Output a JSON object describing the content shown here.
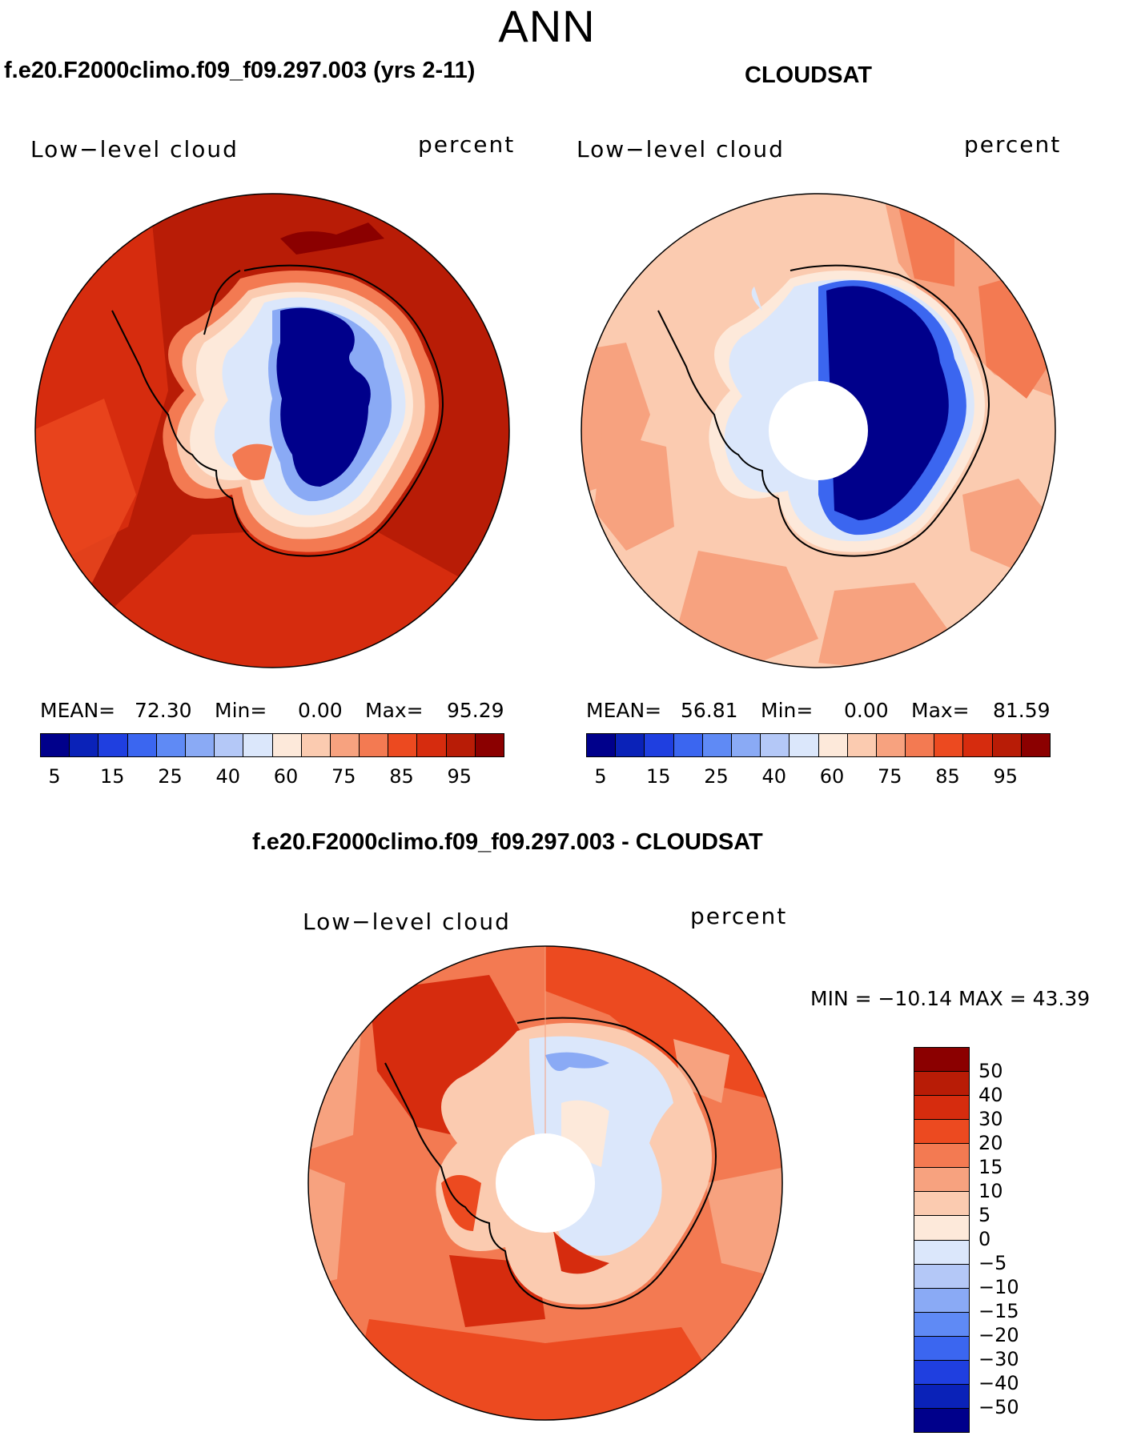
{
  "page": {
    "title": "ANN"
  },
  "panels": [
    {
      "title": "f.e20.F2000climo.f09_f09.297.003 (yrs 2-11)",
      "field": "Low−level cloud",
      "units": "percent",
      "stats": {
        "mean_label": "MEAN=",
        "mean": "72.30",
        "min_label": "Min=",
        "min": "0.00",
        "max_label": "Max=",
        "max": "95.29"
      },
      "colorbar": {
        "colors": [
          "#00008b",
          "#0a22b8",
          "#1f3fe0",
          "#3b66f0",
          "#5f8af5",
          "#8aaaf5",
          "#b4c8f7",
          "#dbe7fb",
          "#fde9da",
          "#fbcbb0",
          "#f7a27f",
          "#f37a52",
          "#ec4a20",
          "#d62c0e",
          "#b81c06",
          "#8b0000"
        ],
        "ticks": [
          "5",
          "15",
          "25",
          "40",
          "60",
          "75",
          "85",
          "95"
        ]
      }
    },
    {
      "title": "CLOUDSAT",
      "field": "Low−level cloud",
      "units": "percent",
      "stats": {
        "mean_label": "MEAN=",
        "mean": "56.81",
        "min_label": "Min=",
        "min": "0.00",
        "max_label": "Max=",
        "max": "81.59"
      },
      "colorbar": {
        "colors": [
          "#00008b",
          "#0a22b8",
          "#1f3fe0",
          "#3b66f0",
          "#5f8af5",
          "#8aaaf5",
          "#b4c8f7",
          "#dbe7fb",
          "#fde9da",
          "#fbcbb0",
          "#f7a27f",
          "#f37a52",
          "#ec4a20",
          "#d62c0e",
          "#b81c06",
          "#8b0000"
        ],
        "ticks": [
          "5",
          "15",
          "25",
          "40",
          "60",
          "75",
          "85",
          "95"
        ]
      }
    }
  ],
  "difference": {
    "title": "f.e20.F2000climo.f09_f09.297.003 - CLOUDSAT",
    "field": "Low−level cloud",
    "units": "percent",
    "minmax": "MIN = −10.14 MAX =   43.39",
    "colorbar": {
      "colors": [
        "#8b0000",
        "#b81c06",
        "#d62c0e",
        "#ec4a20",
        "#f37a52",
        "#f7a27f",
        "#fbcbb0",
        "#fde9da",
        "#dbe7fb",
        "#b4c8f7",
        "#8aaaf5",
        "#5f8af5",
        "#3b66f0",
        "#1f3fe0",
        "#0a22b8",
        "#00008b"
      ],
      "ticks": [
        "50",
        "40",
        "30",
        "20",
        "15",
        "10",
        "5",
        "0",
        "−5",
        "−10",
        "−15",
        "−20",
        "−30",
        "−40",
        "−50"
      ]
    }
  }
}
